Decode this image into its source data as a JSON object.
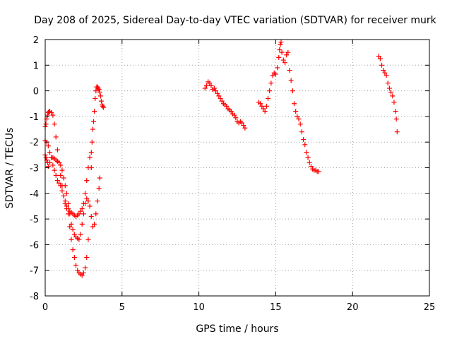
{
  "chart_data": {
    "type": "scatter",
    "title": "Day 208 of 2025, Sidereal Day-to-day VTEC variation (SDTVAR) for receiver murk",
    "xlabel": "GPS time / hours",
    "ylabel": "SDTVAR / TECUs",
    "xlim": [
      0,
      25
    ],
    "ylim": [
      -8,
      2
    ],
    "xticks": [
      0,
      5,
      10,
      15,
      20,
      25
    ],
    "yticks": [
      -8,
      -7,
      -6,
      -5,
      -4,
      -3,
      -2,
      -1,
      0,
      1,
      2
    ],
    "grid": true,
    "marker": "plus",
    "color": "#ff0000",
    "segments": [
      {
        "name": "early-a",
        "x": [
          0.0,
          0.05,
          0.1,
          0.15,
          0.2,
          0.25,
          0.3,
          0.4,
          0.5,
          0.6,
          0.7,
          0.8,
          0.9,
          1.0,
          1.1,
          1.2,
          1.3,
          1.4,
          1.5,
          1.6,
          1.7,
          1.8,
          1.9,
          2.0,
          2.1,
          2.2,
          2.3,
          2.4,
          2.5,
          2.6,
          2.7,
          2.8,
          2.9,
          3.0,
          3.05,
          3.1,
          3.15,
          3.2,
          3.25,
          3.3,
          3.35,
          3.4,
          3.45,
          3.5,
          3.55,
          3.6,
          3.65,
          3.7,
          3.75,
          3.8
        ],
        "y": [
          -1.4,
          -1.3,
          -1.1,
          -0.95,
          -0.85,
          -0.8,
          -0.8,
          -0.85,
          -0.95,
          -1.3,
          -1.8,
          -2.3,
          -2.8,
          -3.3,
          -3.7,
          -4.1,
          -4.4,
          -4.6,
          -4.8,
          -5.3,
          -5.8,
          -6.2,
          -6.5,
          -6.8,
          -7.0,
          -7.1,
          -7.15,
          -7.2,
          -7.1,
          -6.9,
          -6.5,
          -5.8,
          -4.5,
          -3.0,
          -2.0,
          -1.5,
          -1.2,
          -0.8,
          -0.3,
          0.0,
          0.15,
          0.15,
          0.1,
          0.05,
          -0.05,
          -0.2,
          -0.4,
          -0.55,
          -0.6,
          -0.65
        ]
      },
      {
        "name": "early-b",
        "x": [
          0.0,
          0.05,
          0.1,
          0.15,
          0.2,
          0.3,
          0.4,
          0.5,
          0.6,
          0.7,
          0.8,
          0.9,
          1.0,
          1.1,
          1.2,
          1.3,
          1.4,
          1.5,
          1.6,
          1.7,
          1.8,
          1.9,
          2.0,
          2.1,
          2.2,
          2.3,
          2.4,
          2.5,
          2.6,
          2.7,
          2.8,
          2.9,
          3.0,
          3.1,
          3.2,
          3.3,
          3.4,
          3.5,
          3.55
        ],
        "y": [
          -2.5,
          -2.6,
          -2.7,
          -2.8,
          -2.95,
          -2.8,
          -2.6,
          -2.6,
          -2.65,
          -2.7,
          -2.75,
          -2.8,
          -2.9,
          -3.1,
          -3.4,
          -3.7,
          -4.0,
          -4.4,
          -4.8,
          -5.2,
          -5.4,
          -5.6,
          -5.7,
          -5.75,
          -5.8,
          -5.6,
          -5.2,
          -4.8,
          -4.4,
          -4.2,
          -4.3,
          -4.5,
          -4.9,
          -5.3,
          -5.2,
          -4.8,
          -4.3,
          -3.8,
          -3.4
        ]
      },
      {
        "name": "early-c",
        "x": [
          0.0,
          0.1,
          0.2,
          0.3,
          0.4,
          0.5,
          0.6,
          0.7,
          0.8,
          0.9,
          1.0,
          1.1,
          1.2,
          1.3,
          1.4,
          1.5,
          1.6,
          1.7,
          1.8,
          1.9,
          2.0,
          2.1,
          2.2,
          2.3,
          2.4,
          2.5,
          2.6,
          2.7,
          2.8,
          2.9,
          3.0
        ],
        "y": [
          -1.95,
          -2.0,
          -2.15,
          -2.4,
          -2.6,
          -2.9,
          -3.1,
          -3.3,
          -3.5,
          -3.6,
          -3.7,
          -3.9,
          -4.1,
          -4.3,
          -4.5,
          -4.6,
          -4.7,
          -4.75,
          -4.8,
          -4.85,
          -4.9,
          -4.85,
          -4.8,
          -4.7,
          -4.6,
          -4.4,
          -4.0,
          -3.5,
          -3.0,
          -2.6,
          -2.4
        ]
      },
      {
        "name": "midday",
        "x": [
          10.4,
          10.5,
          10.6,
          10.7,
          10.8,
          10.9,
          11.0,
          11.1,
          11.2,
          11.3,
          11.4,
          11.5,
          11.6,
          11.7,
          11.8,
          11.9,
          12.0,
          12.1,
          12.2,
          12.3,
          12.4,
          12.5,
          12.6,
          12.7,
          12.8,
          12.9,
          13.0
        ],
        "y": [
          0.1,
          0.2,
          0.35,
          0.3,
          0.2,
          0.05,
          0.1,
          0.0,
          -0.1,
          -0.2,
          -0.3,
          -0.4,
          -0.5,
          -0.55,
          -0.6,
          -0.7,
          -0.75,
          -0.8,
          -0.9,
          -0.95,
          -1.05,
          -1.2,
          -1.25,
          -1.2,
          -1.25,
          -1.35,
          -1.45
        ]
      },
      {
        "name": "afternoon",
        "x": [
          13.9,
          14.0,
          14.1,
          14.2,
          14.3,
          14.4,
          14.5,
          14.6,
          14.7,
          14.8,
          14.9,
          15.0,
          15.1,
          15.2,
          15.25,
          15.3,
          15.35,
          15.4,
          15.5,
          15.6,
          15.7,
          15.8,
          15.9,
          16.0,
          16.1,
          16.2,
          16.3,
          16.4,
          16.5,
          16.6,
          16.7,
          16.8,
          16.9,
          17.0,
          17.1,
          17.2,
          17.3,
          17.4,
          17.5,
          17.6,
          17.7,
          17.8
        ],
        "y": [
          -0.45,
          -0.5,
          -0.6,
          -0.7,
          -0.8,
          -0.6,
          -0.3,
          0.0,
          0.3,
          0.6,
          0.7,
          0.65,
          0.9,
          1.3,
          1.6,
          1.8,
          1.9,
          1.5,
          1.2,
          1.1,
          1.4,
          1.5,
          0.8,
          0.4,
          0.0,
          -0.5,
          -0.8,
          -1.0,
          -1.1,
          -1.3,
          -1.6,
          -1.9,
          -2.1,
          -2.4,
          -2.6,
          -2.8,
          -2.95,
          -3.05,
          -3.1,
          -3.1,
          -3.15,
          -3.15
        ]
      },
      {
        "name": "evening",
        "x": [
          21.7,
          21.8,
          21.9,
          22.0,
          22.1,
          22.2,
          22.3,
          22.4,
          22.5,
          22.6,
          22.7,
          22.8,
          22.85,
          22.9
        ],
        "y": [
          1.35,
          1.25,
          1.0,
          0.8,
          0.7,
          0.6,
          0.3,
          0.1,
          -0.05,
          -0.2,
          -0.45,
          -0.8,
          -1.1,
          -1.6
        ]
      }
    ]
  }
}
